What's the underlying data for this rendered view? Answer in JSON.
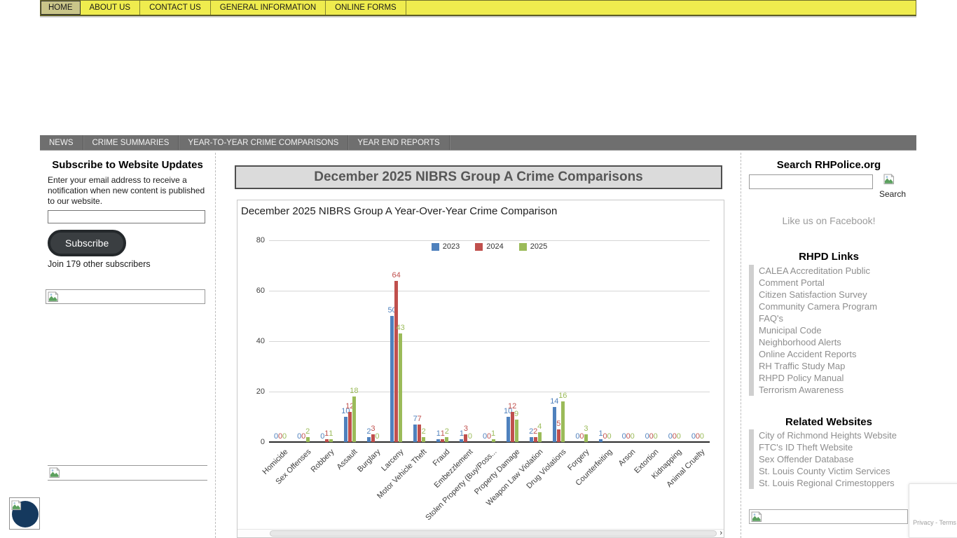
{
  "top_nav": {
    "items": [
      {
        "label": "HOME",
        "active": true
      },
      {
        "label": "ABOUT US",
        "active": false
      },
      {
        "label": "CONTACT US",
        "active": false
      },
      {
        "label": "GENERAL INFORMATION",
        "active": false
      },
      {
        "label": "ONLINE FORMS",
        "active": false
      }
    ]
  },
  "sub_nav": {
    "items": [
      "NEWS",
      "CRIME SUMMARIES",
      "YEAR-TO-YEAR CRIME COMPARISONS",
      "YEAR END REPORTS"
    ]
  },
  "left_sidebar": {
    "subscribe_heading": "Subscribe to Website Updates",
    "subscribe_text": "Enter your email address to receive a notification when new content is published to our website.",
    "email_value": "",
    "subscribe_button": "Subscribe",
    "subscriber_count_text": "Join 179 other subscribers"
  },
  "main": {
    "page_title": "December 2025 NIBRS Group A Crime Comparisons"
  },
  "chart_data": {
    "type": "bar",
    "title": "December 2025 NIBRS Group A Year-Over-Year Crime Comparison",
    "categories": [
      "Homicide",
      "Sex Offenses",
      "Robbery",
      "Assault",
      "Burglary",
      "Larceny",
      "Motor Vehicle Theft",
      "Fraud",
      "Embezzlement",
      "Stolen Property (Buy/Poss...",
      "Property Damage",
      "Weapon Law Violation",
      "Drug Violations",
      "Forgery",
      "Counterfeiting",
      "Arson",
      "Extortion",
      "Kidnapping",
      "Animal Cruelty"
    ],
    "series": [
      {
        "name": "2023",
        "color": "#4F81BD",
        "values": [
          0,
          0,
          0,
          10,
          2,
          50,
          7,
          1,
          1,
          0,
          10,
          2,
          14,
          0,
          1,
          0,
          0,
          0,
          0
        ]
      },
      {
        "name": "2024",
        "color": "#C0504D",
        "values": [
          0,
          0,
          1,
          12,
          3,
          64,
          7,
          1,
          3,
          0,
          12,
          2,
          5,
          0,
          0,
          0,
          0,
          0,
          0
        ]
      },
      {
        "name": "2025",
        "color": "#9BBB59",
        "values": [
          0,
          2,
          1,
          18,
          0,
          43,
          2,
          2,
          0,
          1,
          9,
          4,
          16,
          3,
          0,
          0,
          0,
          0,
          0
        ]
      }
    ],
    "ylim": [
      0,
      80
    ],
    "yticks": [
      0,
      20,
      40,
      60,
      80
    ],
    "grid": true,
    "legend_position": "top",
    "value_labels": true
  },
  "right_sidebar": {
    "search_heading": "Search RHPolice.org",
    "search_value": "",
    "search_button_label": "Search",
    "facebook_link": "Like us on Facebook!",
    "rhpd_links_heading": "RHPD Links",
    "rhpd_links": [
      "CALEA Accreditation Public Comment Portal",
      "Citizen Satisfaction Survey",
      "Community Camera Program",
      "FAQ's",
      "Municipal Code",
      "Neighborhood Alerts",
      "Online Accident Reports",
      "RH Traffic Study Map",
      "RHPD Policy Manual",
      "Terrorism Awareness"
    ],
    "related_heading": "Related Websites",
    "related_links": [
      "City of Richmond Heights Website",
      "FTC's ID Theft Website",
      "Sex Offender Database",
      "St. Louis County Victim Services",
      "St. Louis Regional Crimestoppers"
    ]
  },
  "recaptcha": {
    "privacy": "Privacy",
    "separator": "-",
    "terms": "Terms"
  },
  "colors": {
    "nav_yellow": "#EFEC4E",
    "nav_active_tan": "#C9C589",
    "subnav_gray": "#6F6F6F",
    "title_box_gray": "#DBDBDB",
    "series_2023": "#4F81BD",
    "series_2024": "#C0504D",
    "series_2025": "#9BBB59",
    "accessibility_navy": "#15395E"
  }
}
